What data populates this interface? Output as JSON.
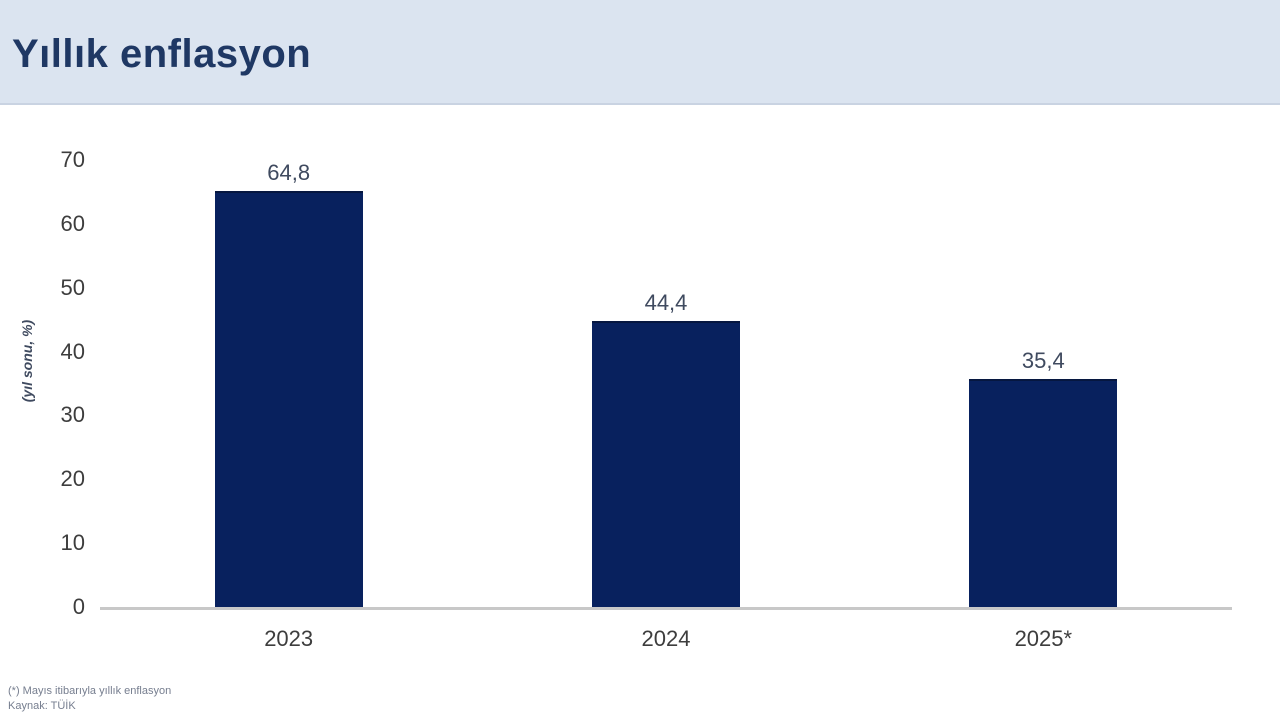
{
  "header": {
    "title": "Yıllık enflasyon"
  },
  "footer": {
    "note": "(*) Mayıs itibarıyla yıllık enflasyon",
    "source": "Kaynak: TÜİK"
  },
  "colors": {
    "header_bg": "#dbe4f0",
    "title_text": "#1f3864",
    "bar": "#08215e",
    "value_label": "#3f4a5f",
    "axis_line": "#c8c8c8",
    "tick_text": "#3d3d3d"
  },
  "chart_data": {
    "type": "bar",
    "title": "Yıllık enflasyon",
    "categories": [
      "2023",
      "2024",
      "2025*"
    ],
    "values": [
      64.8,
      44.4,
      35.4
    ],
    "value_labels": [
      "64,8",
      "44,4",
      "35,4"
    ],
    "xlabel": "",
    "ylabel": "(yıl sonu, %)",
    "ylim": [
      0,
      70
    ],
    "yticks": [
      0,
      10,
      20,
      30,
      40,
      50,
      60,
      70
    ],
    "grid": false,
    "legend": false,
    "annotations": [
      "(*) Mayıs itibarıyla yıllık enflasyon",
      "Kaynak: TÜİK"
    ]
  }
}
